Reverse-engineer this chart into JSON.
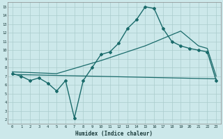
{
  "xlabel": "Humidex (Indice chaleur)",
  "bg_color": "#cce8ea",
  "grid_color": "#aacccc",
  "line_color": "#1a6b6b",
  "xlim": [
    -0.5,
    23.5
  ],
  "ylim": [
    1.5,
    15.5
  ],
  "xticks": [
    0,
    1,
    2,
    3,
    4,
    5,
    6,
    7,
    8,
    9,
    10,
    11,
    12,
    13,
    14,
    15,
    16,
    17,
    18,
    19,
    20,
    21,
    22,
    23
  ],
  "yticks": [
    2,
    3,
    4,
    5,
    6,
    7,
    8,
    9,
    10,
    11,
    12,
    13,
    14,
    15
  ],
  "line1_x": [
    0,
    1,
    2,
    3,
    4,
    5,
    6,
    7,
    8,
    9,
    10,
    11,
    12,
    13,
    14,
    15,
    16,
    17,
    18,
    19,
    20,
    21,
    22,
    23
  ],
  "line1_y": [
    7.3,
    7.0,
    6.5,
    6.8,
    6.2,
    5.3,
    6.5,
    2.2,
    6.5,
    8.0,
    9.5,
    9.8,
    10.8,
    12.5,
    13.5,
    15.0,
    14.8,
    12.5,
    11.0,
    10.5,
    10.2,
    10.0,
    9.8,
    6.5
  ],
  "line2_x": [
    0,
    23
  ],
  "line2_y": [
    7.2,
    6.7
  ],
  "line3_x": [
    0,
    5,
    10,
    15,
    19,
    21,
    22,
    23
  ],
  "line3_y": [
    7.5,
    7.3,
    8.8,
    10.5,
    12.2,
    10.5,
    10.2,
    7.0
  ]
}
